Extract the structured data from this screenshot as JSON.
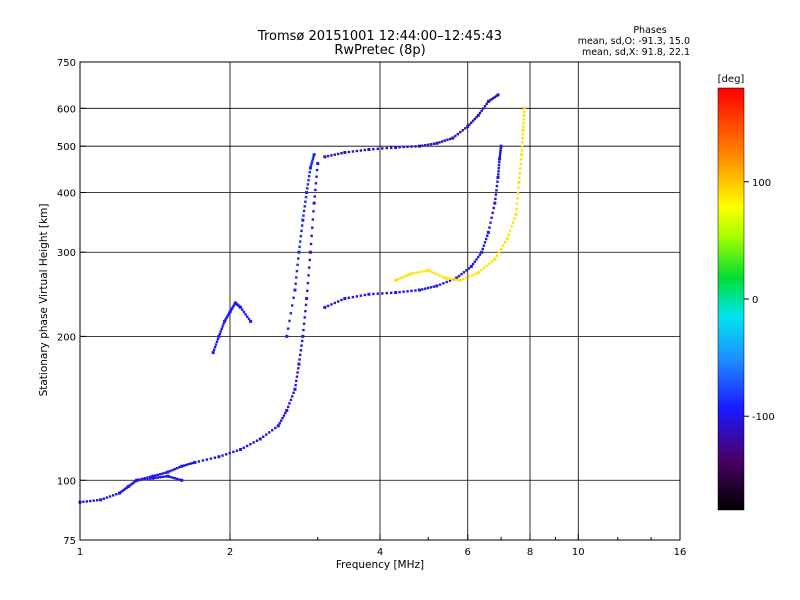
{
  "chart_data": {
    "type": "scatter",
    "title": "Tromsø 20151001 12:44:00–12:45:43",
    "subtitle": "RwPretec (8p)",
    "xlabel": "Frequency [MHz]",
    "ylabel": "Stationary phase Virtual Height [km]",
    "xscale": "log",
    "yscale": "log",
    "xlim": [
      1,
      16
    ],
    "ylim": [
      75,
      750
    ],
    "xticks": [
      1,
      2,
      4,
      6,
      8,
      10,
      16
    ],
    "xtick_labels": [
      "1",
      "2",
      "4",
      "6",
      "8",
      "10",
      "16"
    ],
    "yticks": [
      75,
      100,
      200,
      300,
      400,
      500,
      600,
      750
    ],
    "ytick_labels": [
      "75",
      "100",
      "200",
      "300",
      "400",
      "500",
      "600",
      "750"
    ],
    "grid": true,
    "phase_legend": {
      "heading": "Phases",
      "line_o": "mean, sd,O: -91.3, 15.0",
      "line_x": "mean, sd,X:  91.8, 22.1"
    },
    "colorbar": {
      "label": "[deg]",
      "ticks": [
        "100",
        "0",
        "-100"
      ],
      "tick_values": [
        100,
        0,
        -100
      ],
      "range": [
        -180,
        180
      ]
    },
    "traces": [
      {
        "name": "lower-trace-1",
        "phase": -100,
        "points": [
          [
            1.0,
            90
          ],
          [
            1.1,
            91
          ],
          [
            1.2,
            94
          ],
          [
            1.25,
            97
          ],
          [
            1.3,
            100
          ],
          [
            1.4,
            102
          ],
          [
            1.5,
            104
          ],
          [
            1.6,
            107
          ],
          [
            1.7,
            109
          ],
          [
            1.9,
            112
          ],
          [
            2.1,
            116
          ],
          [
            2.3,
            122
          ],
          [
            2.5,
            130
          ],
          [
            2.6,
            140
          ],
          [
            2.7,
            155
          ],
          [
            2.75,
            175
          ],
          [
            2.8,
            200
          ],
          [
            2.85,
            240
          ],
          [
            2.9,
            300
          ],
          [
            2.95,
            380
          ],
          [
            3.0,
            460
          ]
        ]
      },
      {
        "name": "lower-trace-2",
        "phase": -100,
        "points": [
          [
            1.3,
            100
          ],
          [
            1.4,
            101
          ],
          [
            1.5,
            102
          ],
          [
            1.6,
            100
          ]
        ]
      },
      {
        "name": "f1-cloud",
        "phase": -95,
        "points": [
          [
            1.85,
            185
          ],
          [
            1.9,
            200
          ],
          [
            1.95,
            215
          ],
          [
            2.0,
            225
          ],
          [
            2.05,
            235
          ],
          [
            2.1,
            230
          ],
          [
            2.2,
            215
          ]
        ]
      },
      {
        "name": "f1-patch",
        "phase": -90,
        "points": [
          [
            2.6,
            200
          ],
          [
            2.7,
            250
          ],
          [
            2.75,
            300
          ],
          [
            2.8,
            350
          ],
          [
            2.85,
            400
          ],
          [
            2.9,
            450
          ],
          [
            2.95,
            480
          ]
        ]
      },
      {
        "name": "o-mode-F2",
        "phase": -100,
        "points": [
          [
            3.1,
            230
          ],
          [
            3.4,
            240
          ],
          [
            3.8,
            245
          ],
          [
            4.3,
            247
          ],
          [
            4.8,
            250
          ],
          [
            5.2,
            255
          ],
          [
            5.7,
            265
          ],
          [
            6.1,
            280
          ],
          [
            6.4,
            300
          ],
          [
            6.6,
            330
          ],
          [
            6.8,
            380
          ],
          [
            6.9,
            430
          ],
          [
            6.95,
            470
          ],
          [
            7.0,
            500
          ]
        ]
      },
      {
        "name": "o-mode-upper",
        "phase": -110,
        "points": [
          [
            3.1,
            475
          ],
          [
            3.4,
            485
          ],
          [
            3.8,
            492
          ],
          [
            4.3,
            497
          ],
          [
            4.8,
            500
          ],
          [
            5.2,
            507
          ],
          [
            5.6,
            520
          ],
          [
            6.0,
            550
          ],
          [
            6.3,
            580
          ],
          [
            6.6,
            620
          ],
          [
            6.9,
            640
          ]
        ]
      },
      {
        "name": "x-mode-F2",
        "phase": 90,
        "points": [
          [
            4.3,
            262
          ],
          [
            4.6,
            270
          ],
          [
            5.0,
            275
          ],
          [
            5.4,
            265
          ],
          [
            5.8,
            262
          ],
          [
            6.3,
            272
          ],
          [
            6.8,
            290
          ],
          [
            7.2,
            320
          ],
          [
            7.5,
            360
          ],
          [
            7.6,
            420
          ],
          [
            7.7,
            480
          ],
          [
            7.75,
            540
          ],
          [
            7.8,
            600
          ]
        ]
      }
    ]
  }
}
